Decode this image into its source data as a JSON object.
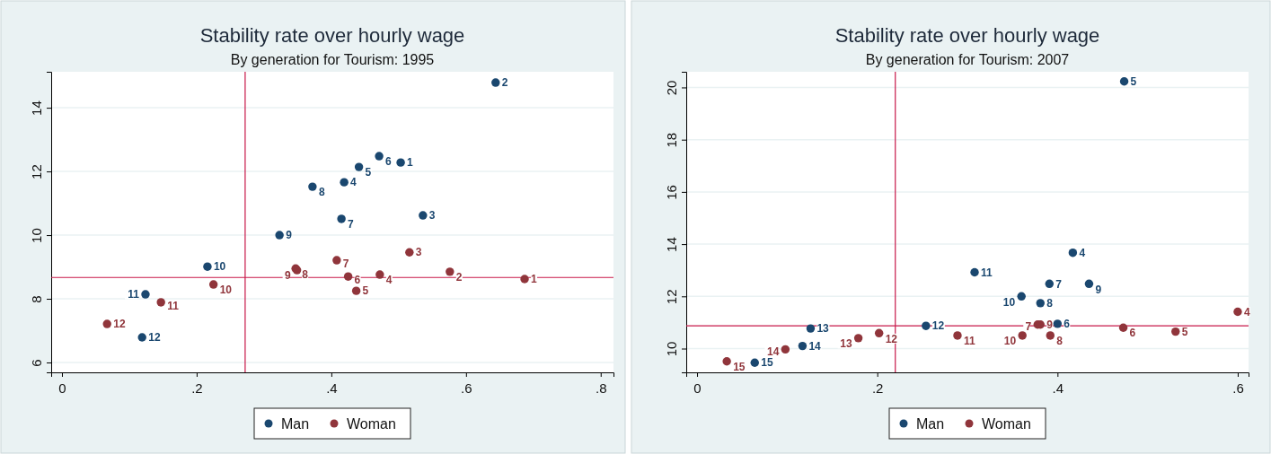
{
  "chart_data": [
    {
      "type": "scatter",
      "title": "Stability rate over hourly wage",
      "subtitle": "By generation for Tourism: 1995",
      "xlim": [
        -0.016,
        0.819
      ],
      "ylim": [
        5.69,
        15.13
      ],
      "xticks": [
        0,
        {
          "value": 0.2,
          "label": ".2"
        },
        {
          "value": 0.4,
          "label": ".4"
        },
        {
          "value": 0.6,
          "label": ".6"
        },
        {
          "value": 0.8,
          "label": ".8"
        }
      ],
      "yticks": [
        6,
        8,
        10,
        12,
        14
      ],
      "grid": "y",
      "legend": "bottom",
      "marker": "circle",
      "ref_lines": [
        {
          "axis": "x",
          "value": 0.272,
          "color": "#c8184a"
        },
        {
          "axis": "y",
          "value": 8.67,
          "color": "#c8184a"
        }
      ],
      "series": [
        {
          "name": "Man",
          "color": "#1a476f",
          "x": [
            0.503,
            0.644,
            0.536,
            0.419,
            0.441,
            0.471,
            0.415,
            0.372,
            0.323,
            0.216,
            0.124,
            0.119
          ],
          "values": [
            12.28,
            14.79,
            10.62,
            11.66,
            12.14,
            12.48,
            10.51,
            11.52,
            10.0,
            9.01,
            8.14,
            6.79
          ]
        },
        {
          "name": "Woman",
          "color": "#90353b",
          "x": [
            0.687,
            0.576,
            0.516,
            0.472,
            0.437,
            0.425,
            0.408,
            0.347,
            0.349,
            0.225,
            0.147,
            0.067
          ],
          "values": [
            8.62,
            8.85,
            9.46,
            8.76,
            8.25,
            8.7,
            9.21,
            8.95,
            8.9,
            8.45,
            7.89,
            7.21
          ]
        }
      ],
      "annotations": [
        {
          "text": "1",
          "x": 0.503,
          "y": 12.28
        },
        {
          "text": "2",
          "x": 0.644,
          "y": 14.79
        },
        {
          "text": "3",
          "x": 0.536,
          "y": 10.62
        },
        {
          "text": "4",
          "x": 0.419,
          "y": 11.66
        },
        {
          "text": "5",
          "x": 0.441,
          "y": 12.14
        },
        {
          "text": "6",
          "x": 0.471,
          "y": 12.48
        },
        {
          "text": "7",
          "x": 0.415,
          "y": 10.51
        },
        {
          "text": "8",
          "x": 0.372,
          "y": 11.52
        },
        {
          "text": "9",
          "x": 0.323,
          "y": 10.0
        },
        {
          "text": "10",
          "x": 0.216,
          "y": 9.01
        },
        {
          "text": "11",
          "x": 0.124,
          "y": 8.14
        },
        {
          "text": "12",
          "x": 0.119,
          "y": 6.79
        },
        {
          "text": "1",
          "x": 0.687,
          "y": 8.62
        },
        {
          "text": "2",
          "x": 0.576,
          "y": 8.85
        },
        {
          "text": "3",
          "x": 0.516,
          "y": 9.46
        },
        {
          "text": "4",
          "x": 0.472,
          "y": 8.76
        },
        {
          "text": "5",
          "x": 0.437,
          "y": 8.25
        },
        {
          "text": "6",
          "x": 0.425,
          "y": 8.7
        },
        {
          "text": "7",
          "x": 0.408,
          "y": 9.21
        },
        {
          "text": "8",
          "x": 0.347,
          "y": 8.95
        },
        {
          "text": "9",
          "x": 0.349,
          "y": 8.9
        },
        {
          "text": "10",
          "x": 0.225,
          "y": 8.45
        },
        {
          "text": "11",
          "x": 0.147,
          "y": 7.89
        },
        {
          "text": "12",
          "x": 0.067,
          "y": 7.21
        }
      ]
    },
    {
      "type": "scatter",
      "title": "Stability rate over hourly wage",
      "subtitle": "By generation for Tourism: 2007",
      "xlim": [
        -0.012,
        0.612
      ],
      "ylim": [
        9.09,
        20.6
      ],
      "xticks": [
        0,
        {
          "value": 0.2,
          "label": ".2"
        },
        {
          "value": 0.4,
          "label": ".4"
        },
        {
          "value": 0.6,
          "label": ".6"
        }
      ],
      "yticks": [
        10,
        12,
        14,
        16,
        18,
        20
      ],
      "grid": "y",
      "legend": "bottom",
      "marker": "circle",
      "ref_lines": [
        {
          "axis": "x",
          "value": 0.22,
          "color": "#c8184a"
        },
        {
          "axis": "y",
          "value": 10.87,
          "color": "#c8184a"
        }
      ],
      "series": [
        {
          "name": "Man",
          "color": "#1a476f",
          "x": [
            0.417,
            0.474,
            0.4,
            0.391,
            0.381,
            0.435,
            0.36,
            0.308,
            0.254,
            0.126,
            0.117,
            0.064
          ],
          "values": [
            13.67,
            20.23,
            10.95,
            12.48,
            11.74,
            12.48,
            12.0,
            12.92,
            10.87,
            10.77,
            10.1,
            9.46
          ]
        },
        {
          "name": "Woman",
          "color": "#90353b",
          "x": [
            0.6,
            0.531,
            0.473,
            0.378,
            0.392,
            0.381,
            0.361,
            0.289,
            0.202,
            0.179,
            0.098,
            0.033
          ],
          "values": [
            11.41,
            10.65,
            10.8,
            10.92,
            10.5,
            10.92,
            10.5,
            10.5,
            10.59,
            10.4,
            9.97,
            9.51
          ]
        }
      ],
      "annotations": [
        {
          "text": "4",
          "x": 0.417,
          "y": 13.67
        },
        {
          "text": "5",
          "x": 0.474,
          "y": 20.23
        },
        {
          "text": "6",
          "x": 0.4,
          "y": 10.95
        },
        {
          "text": "7",
          "x": 0.391,
          "y": 12.48
        },
        {
          "text": "8",
          "x": 0.381,
          "y": 11.74
        },
        {
          "text": "9",
          "x": 0.435,
          "y": 12.48
        },
        {
          "text": "10",
          "x": 0.36,
          "y": 12.0
        },
        {
          "text": "11",
          "x": 0.308,
          "y": 12.92
        },
        {
          "text": "12",
          "x": 0.254,
          "y": 10.87
        },
        {
          "text": "13",
          "x": 0.126,
          "y": 10.77
        },
        {
          "text": "14",
          "x": 0.117,
          "y": 10.1
        },
        {
          "text": "15",
          "x": 0.064,
          "y": 9.46
        },
        {
          "text": "4",
          "x": 0.6,
          "y": 11.41
        },
        {
          "text": "5",
          "x": 0.531,
          "y": 10.65
        },
        {
          "text": "6",
          "x": 0.473,
          "y": 10.8
        },
        {
          "text": "7",
          "x": 0.378,
          "y": 10.92
        },
        {
          "text": "8",
          "x": 0.392,
          "y": 10.5
        },
        {
          "text": "9",
          "x": 0.381,
          "y": 10.92
        },
        {
          "text": "10",
          "x": 0.361,
          "y": 10.5
        },
        {
          "text": "11",
          "x": 0.289,
          "y": 10.5
        },
        {
          "text": "12",
          "x": 0.202,
          "y": 10.59
        },
        {
          "text": "13",
          "x": 0.179,
          "y": 10.4
        },
        {
          "text": "14",
          "x": 0.098,
          "y": 9.97
        },
        {
          "text": "15",
          "x": 0.033,
          "y": 9.51
        }
      ]
    }
  ]
}
